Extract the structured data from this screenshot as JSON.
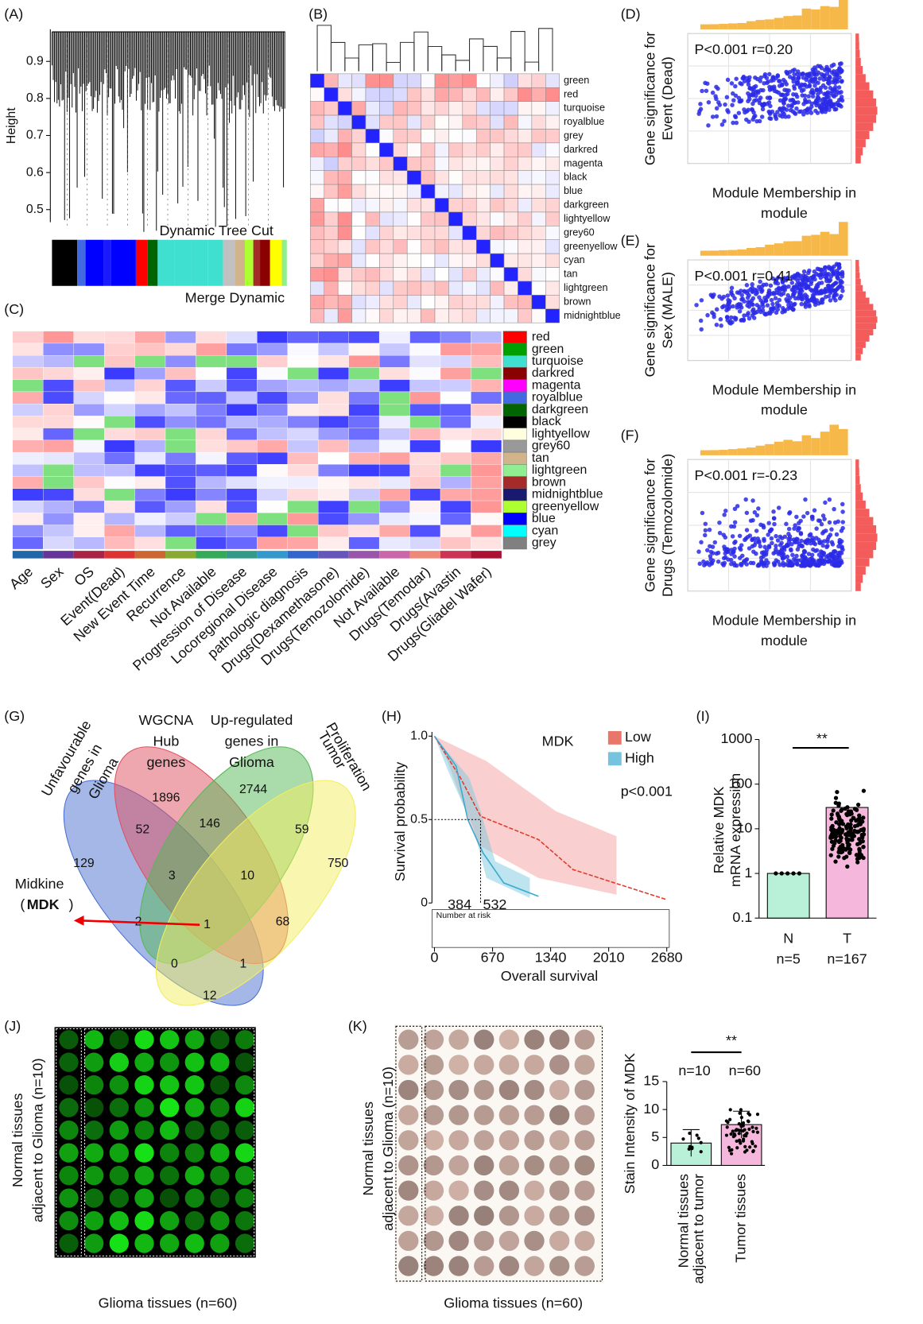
{
  "A": {
    "label": "(A)",
    "ylabel": "Height",
    "yticks": [
      0.9,
      0.8,
      0.7,
      0.6,
      0.5
    ],
    "ylim": [
      0.45,
      1.0
    ],
    "cut": "Dynamic Tree Cut",
    "merge": "Merge Dynamic"
  },
  "B": {
    "label": "(B)",
    "modules": [
      "green",
      "red",
      "turquoise",
      "royalblue",
      "grey",
      "darkred",
      "magenta",
      "black",
      "blue",
      "darkgreen",
      "lightyellow",
      "grey60",
      "greenyellow",
      "cyan",
      "tan",
      "lightgreen",
      "brown",
      "midnightblue"
    ]
  },
  "C": {
    "label": "(C)",
    "modules": [
      "red",
      "green",
      "turquoise",
      "darkred",
      "magenta",
      "royalblue",
      "darkgreen",
      "black",
      "lightyellow",
      "grey60",
      "tan",
      "lightgreen",
      "brown",
      "midnightblue",
      "greenyellow",
      "blue",
      "cyan",
      "grey"
    ],
    "traits": [
      "Age",
      "Sex",
      "OS",
      "Event(Dead)",
      "New Event Time",
      "Recurrence",
      "Not Available",
      "Progression of Disease",
      "Locoregional Disease",
      "pathologic diagnosis",
      "Drugs(Dexamethasone)",
      "Drugs(Temozolomide)",
      "Not Available",
      "Drugs(Temodar)",
      "Drugs(Avastin",
      "Drugs(Gliadel Wafer)"
    ]
  },
  "D": {
    "label": "(D)",
    "ylabel": [
      "Gene significance for",
      "Event (Dead)"
    ],
    "xlabel": [
      "Module Membership in",
      "module"
    ],
    "stat": "P<0.001 r=0.20"
  },
  "E": {
    "label": "(E)",
    "ylabel": [
      "Gene significance for",
      "Sex (MALE)"
    ],
    "xlabel": [
      "Module Membership in",
      "module"
    ],
    "stat": "P<0.001 r=0.41"
  },
  "F": {
    "label": "(F)",
    "ylabel": [
      "Gene significance for",
      "Drugs (Temozolomide)"
    ],
    "xlabel": [
      "Module Membership in",
      "module"
    ],
    "stat": "P<0.001 r=-0.23"
  },
  "G": {
    "label": "(G)",
    "sets": [
      [
        "Unfavourable",
        "genes in",
        "Glioma"
      ],
      [
        "WGCNA",
        "Hub",
        "genes"
      ],
      [
        "Up-regulated",
        "genes in",
        "Glioma"
      ],
      [
        "Tumor",
        "Proliferation"
      ]
    ],
    "counts": [
      129,
      1896,
      2744,
      750,
      52,
      146,
      59,
      3,
      10,
      68,
      2,
      1,
      0,
      1,
      12
    ],
    "gene": "Midkine",
    "gene_symbol": "MDK"
  },
  "H": {
    "label": "(H)",
    "gene": "MDK",
    "groups": [
      "Low",
      "High"
    ],
    "pvalue": "p<0.001",
    "ylabel": "Survival probability",
    "xlabel": "Overall survival",
    "xlim": [
      0,
      2680
    ],
    "xticks": [
      0,
      670,
      1340,
      2010,
      2680
    ],
    "ylim": [
      0,
      1
    ],
    "yticks": [
      {
        "value": 1,
        "label": "1.0"
      },
      0.5,
      0
    ],
    "medians": [
      384,
      532
    ],
    "risk": "Number at risk"
  },
  "I": {
    "label": "(I)",
    "ylabel": [
      "Relative MDK",
      "mRNA expression"
    ],
    "ylim": [
      0.1,
      1000
    ],
    "yticks": [
      1000,
      100,
      10,
      1,
      0.1
    ],
    "log": true,
    "categories": [
      "N",
      "T"
    ],
    "values": [
      1,
      30
    ],
    "n": [
      "n=5",
      "n=167"
    ],
    "signif": "**"
  },
  "J": {
    "label": "(J)",
    "ylabel": [
      "Normal tissues",
      "adjacent to Glioma (n=10)"
    ],
    "xlabel": "Glioma tissues (n=60)"
  },
  "K": {
    "label": "(K)",
    "ylabel": [
      "Normal tissues",
      "adjacent to Glioma (n=10)"
    ],
    "xlabel": "Glioma tissues (n=60)",
    "bar_ylabel": "Stain Intensity of MDK",
    "ylim": [
      0,
      15
    ],
    "yticks": [
      0,
      5,
      10,
      15
    ],
    "categories": [
      [
        "Normal tissues",
        "adjacent to tumor"
      ],
      [
        "Tumor tissues"
      ]
    ],
    "values": [
      4,
      7.3
    ],
    "n": [
      "n=10",
      "n=60"
    ],
    "signif": "**"
  }
}
